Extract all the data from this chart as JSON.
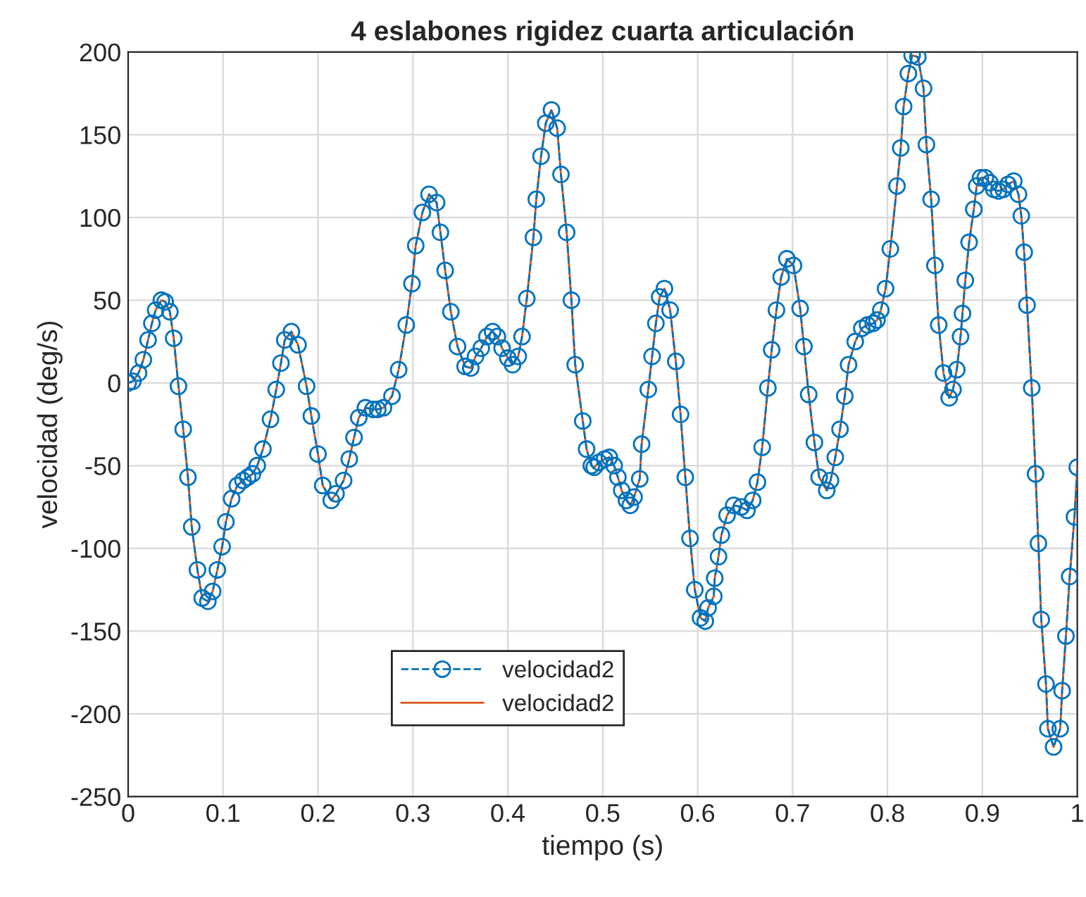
{
  "chart_data": {
    "type": "line",
    "title": "4 eslabones rigidez cuarta articulación",
    "xlabel": "tiempo (s)",
    "ylabel": "velocidad (deg/s)",
    "x": [
      0,
      0.005,
      0.011,
      0.016,
      0.021,
      0.025,
      0.029,
      0.035,
      0.039,
      0.044,
      0.048,
      0.053,
      0.058,
      0.063,
      0.067,
      0.073,
      0.078,
      0.084,
      0.089,
      0.094,
      0.099,
      0.103,
      0.109,
      0.115,
      0.121,
      0.126,
      0.131,
      0.136,
      0.142,
      0.15,
      0.156,
      0.161,
      0.165,
      0.172,
      0.179,
      0.188,
      0.193,
      0.2,
      0.205,
      0.214,
      0.219,
      0.227,
      0.233,
      0.238,
      0.243,
      0.25,
      0.258,
      0.263,
      0.269,
      0.278,
      0.285,
      0.293,
      0.299,
      0.303,
      0.31,
      0.317,
      0.325,
      0.329,
      0.334,
      0.34,
      0.347,
      0.355,
      0.361,
      0.366,
      0.372,
      0.378,
      0.384,
      0.389,
      0.394,
      0.4,
      0.405,
      0.411,
      0.415,
      0.42,
      0.427,
      0.43,
      0.435,
      0.44,
      0.446,
      0.452,
      0.456,
      0.462,
      0.467,
      0.471,
      0.479,
      0.483,
      0.488,
      0.491,
      0.496,
      0.502,
      0.507,
      0.512,
      0.516,
      0.52,
      0.525,
      0.529,
      0.533,
      0.539,
      0.541,
      0.548,
      0.552,
      0.556,
      0.56,
      0.565,
      0.571,
      0.577,
      0.582,
      0.587,
      0.592,
      0.597,
      0.603,
      0.608,
      0.611,
      0.617,
      0.618,
      0.622,
      0.625,
      0.631,
      0.638,
      0.646,
      0.652,
      0.658,
      0.663,
      0.668,
      0.674,
      0.678,
      0.683,
      0.688,
      0.694,
      0.701,
      0.708,
      0.712,
      0.717,
      0.723,
      0.728,
      0.736,
      0.74,
      0.745,
      0.75,
      0.755,
      0.759,
      0.766,
      0.773,
      0.779,
      0.785,
      0.789,
      0.793,
      0.798,
      0.803,
      0.81,
      0.814,
      0.817,
      0.822,
      0.826,
      0.832,
      0.838,
      0.841,
      0.846,
      0.85,
      0.854,
      0.859,
      0.865,
      0.869,
      0.873,
      0.877,
      0.879,
      0.882,
      0.886,
      0.891,
      0.894,
      0.898,
      0.903,
      0.908,
      0.912,
      0.917,
      0.922,
      0.927,
      0.933,
      0.938,
      0.941,
      0.944,
      0.947,
      0.952,
      0.956,
      0.959,
      0.962,
      0.967,
      0.969,
      0.975,
      0.982,
      0.984,
      0.988,
      0.992,
      0.997,
      1
    ],
    "series": [
      {
        "name": "velocidad2",
        "color": "#0072bd",
        "line_style": "dashed",
        "marker": "circle",
        "values": [
          0,
          1,
          6,
          14,
          26,
          36,
          44,
          50,
          49,
          43,
          27,
          -2,
          -28,
          -57,
          -87,
          -113,
          -130,
          -132,
          -126,
          -113,
          -99,
          -84,
          -70,
          -62,
          -59,
          -57,
          -55,
          -50,
          -40,
          -22,
          -4,
          12,
          26,
          31,
          23,
          -2,
          -20,
          -43,
          -62,
          -71,
          -67,
          -59,
          -46,
          -33,
          -21,
          -15,
          -16,
          -16,
          -15,
          -8,
          8,
          35,
          60,
          83,
          103,
          114,
          109,
          91,
          68,
          43,
          22,
          10,
          9,
          16,
          21,
          28,
          31,
          28,
          21,
          15,
          11,
          16,
          28,
          51,
          88,
          111,
          137,
          157,
          165,
          154,
          126,
          91,
          50,
          11,
          -23,
          -40,
          -50,
          -51,
          -48,
          -46,
          -45,
          -50,
          -57,
          -65,
          -71,
          -74,
          -69,
          -58,
          -37,
          -4,
          16,
          36,
          52,
          57,
          44,
          13,
          -19,
          -57,
          -94,
          -125,
          -142,
          -144,
          -136,
          -129,
          -118,
          -105,
          -92,
          -80,
          -74,
          -75,
          -77,
          -71,
          -60,
          -39,
          -3,
          20,
          44,
          64,
          75,
          71,
          45,
          22,
          -7,
          -36,
          -57,
          -65,
          -59,
          -45,
          -28,
          -8,
          11,
          25,
          33,
          35,
          36,
          38,
          44,
          57,
          81,
          119,
          142,
          167,
          187,
          198,
          197,
          178,
          144,
          111,
          71,
          35,
          6,
          -9,
          -4,
          8,
          28,
          42,
          62,
          85,
          105,
          119,
          124,
          124,
          121,
          117,
          116,
          117,
          120,
          122,
          114,
          101,
          79,
          47,
          -3,
          -55,
          -97,
          -143,
          -182,
          -209,
          -220,
          -209,
          -186,
          -153,
          -117,
          -81,
          -51
        ]
      },
      {
        "name": "velocidad2",
        "color": "#d95319",
        "line_style": "solid",
        "marker": "none",
        "values": [
          0,
          1,
          6,
          14,
          26,
          36,
          44,
          50,
          49,
          43,
          27,
          -2,
          -28,
          -57,
          -87,
          -113,
          -130,
          -132,
          -126,
          -113,
          -99,
          -84,
          -70,
          -62,
          -59,
          -57,
          -55,
          -50,
          -40,
          -22,
          -4,
          12,
          26,
          31,
          23,
          -2,
          -20,
          -43,
          -62,
          -71,
          -67,
          -59,
          -46,
          -33,
          -21,
          -15,
          -16,
          -16,
          -15,
          -8,
          8,
          35,
          60,
          83,
          103,
          114,
          109,
          91,
          68,
          43,
          22,
          10,
          9,
          16,
          21,
          28,
          31,
          28,
          21,
          15,
          11,
          16,
          28,
          51,
          88,
          111,
          137,
          157,
          165,
          154,
          126,
          91,
          50,
          11,
          -23,
          -40,
          -50,
          -51,
          -48,
          -46,
          -45,
          -50,
          -57,
          -65,
          -71,
          -74,
          -69,
          -58,
          -37,
          -4,
          16,
          36,
          52,
          57,
          44,
          13,
          -19,
          -57,
          -94,
          -125,
          -142,
          -144,
          -136,
          -129,
          -118,
          -105,
          -92,
          -80,
          -74,
          -75,
          -77,
          -71,
          -60,
          -39,
          -3,
          20,
          44,
          64,
          75,
          71,
          45,
          22,
          -7,
          -36,
          -57,
          -65,
          -59,
          -45,
          -28,
          -8,
          11,
          25,
          33,
          35,
          36,
          38,
          44,
          57,
          81,
          119,
          142,
          167,
          187,
          198,
          197,
          178,
          144,
          111,
          71,
          35,
          6,
          -9,
          -4,
          8,
          28,
          42,
          62,
          85,
          105,
          119,
          124,
          124,
          121,
          117,
          116,
          117,
          120,
          122,
          114,
          101,
          79,
          47,
          -3,
          -55,
          -97,
          -143,
          -182,
          -209,
          -220,
          -209,
          -186,
          -153,
          -117,
          -81,
          -51
        ]
      }
    ],
    "xlim": [
      0,
      1
    ],
    "xticks": [
      0,
      0.1,
      0.2,
      0.3,
      0.4,
      0.5,
      0.6,
      0.7,
      0.8,
      0.9,
      1
    ],
    "ylim": [
      -250,
      200
    ],
    "yticks": [
      -250,
      -200,
      -150,
      -100,
      -50,
      0,
      50,
      100,
      150,
      200
    ],
    "grid": true,
    "legend": "bottom"
  }
}
